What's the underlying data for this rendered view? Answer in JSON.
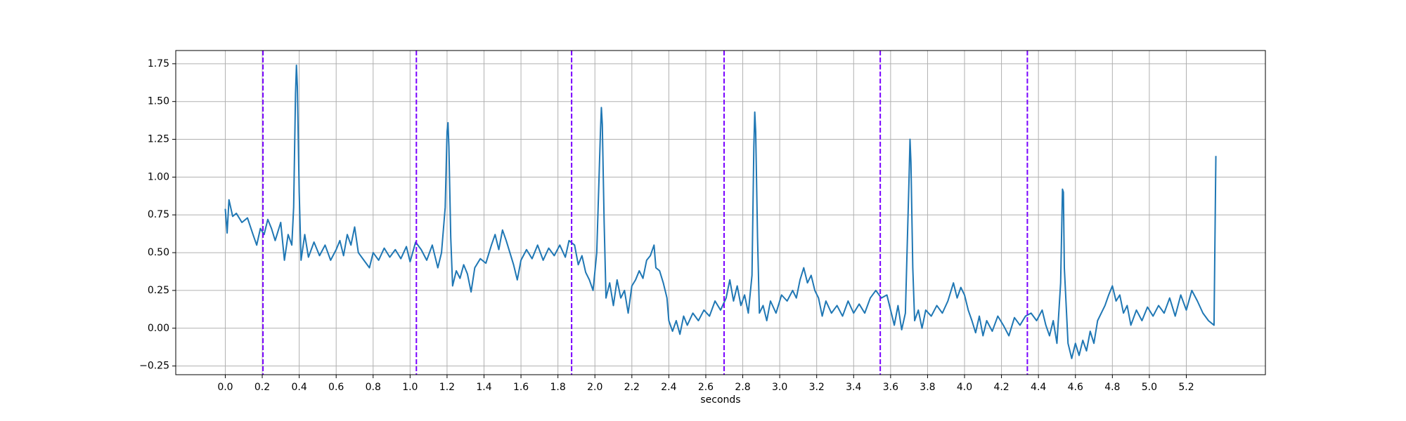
{
  "chart_data": {
    "type": "line",
    "xlabel": "seconds",
    "color": "#1f77b4",
    "grid": true,
    "xlim": [
      -0.268,
      5.628
    ],
    "ylim": [
      -0.3075,
      1.8375
    ],
    "xticks": [
      {
        "value": 0,
        "label": "0.0"
      },
      0.2,
      0.4,
      0.6,
      0.8,
      {
        "value": 1,
        "label": "1.0"
      },
      1.2,
      1.4,
      1.6,
      1.8,
      {
        "value": 2,
        "label": "2.0"
      },
      2.2,
      2.4,
      2.6,
      2.8,
      {
        "value": 3,
        "label": "3.0"
      },
      3.2,
      3.4,
      3.6,
      3.8,
      {
        "value": 4,
        "label": "4.0"
      },
      4.2,
      4.4,
      4.6,
      4.8,
      {
        "value": 5,
        "label": "5.0"
      },
      5.2
    ],
    "yticks": [
      {
        "value": -0.25,
        "label": "−0.25"
      },
      {
        "value": 0,
        "label": "0.00"
      },
      0.25,
      {
        "value": 0.5,
        "label": "0.50"
      },
      0.75,
      {
        "value": 1,
        "label": "1.00"
      },
      1.25,
      {
        "value": 1.5,
        "label": "1.50"
      },
      1.75
    ],
    "vlines": [
      0.204,
      1.034,
      1.874,
      2.699,
      3.544,
      4.34
    ],
    "vline_color": "#7a00ff",
    "vline_style": "dashed",
    "x": [
      0.0,
      0.01,
      0.02,
      0.04,
      0.06,
      0.09,
      0.12,
      0.15,
      0.17,
      0.19,
      0.21,
      0.23,
      0.25,
      0.27,
      0.3,
      0.32,
      0.34,
      0.36,
      0.37,
      0.38,
      0.385,
      0.39,
      0.4,
      0.41,
      0.43,
      0.45,
      0.48,
      0.51,
      0.54,
      0.57,
      0.6,
      0.62,
      0.64,
      0.66,
      0.68,
      0.7,
      0.72,
      0.75,
      0.78,
      0.8,
      0.83,
      0.86,
      0.89,
      0.92,
      0.95,
      0.98,
      1.0,
      1.03,
      1.06,
      1.09,
      1.12,
      1.15,
      1.17,
      1.19,
      1.2,
      1.205,
      1.21,
      1.22,
      1.23,
      1.25,
      1.27,
      1.29,
      1.31,
      1.33,
      1.35,
      1.38,
      1.41,
      1.44,
      1.46,
      1.48,
      1.5,
      1.52,
      1.54,
      1.56,
      1.58,
      1.6,
      1.63,
      1.66,
      1.69,
      1.72,
      1.75,
      1.78,
      1.81,
      1.84,
      1.86,
      1.89,
      1.91,
      1.93,
      1.95,
      1.97,
      1.99,
      2.01,
      2.03,
      2.035,
      2.04,
      2.05,
      2.06,
      2.08,
      2.1,
      2.12,
      2.14,
      2.16,
      2.18,
      2.2,
      2.22,
      2.24,
      2.26,
      2.28,
      2.3,
      2.32,
      2.33,
      2.35,
      2.37,
      2.39,
      2.4,
      2.42,
      2.44,
      2.46,
      2.48,
      2.5,
      2.53,
      2.56,
      2.59,
      2.62,
      2.65,
      2.68,
      2.71,
      2.73,
      2.75,
      2.77,
      2.79,
      2.81,
      2.83,
      2.85,
      2.86,
      2.865,
      2.87,
      2.88,
      2.89,
      2.91,
      2.93,
      2.95,
      2.98,
      3.01,
      3.04,
      3.07,
      3.09,
      3.11,
      3.13,
      3.15,
      3.17,
      3.19,
      3.21,
      3.23,
      3.25,
      3.28,
      3.31,
      3.34,
      3.37,
      3.4,
      3.43,
      3.46,
      3.49,
      3.52,
      3.55,
      3.58,
      3.6,
      3.62,
      3.64,
      3.66,
      3.68,
      3.7,
      3.705,
      3.71,
      3.72,
      3.73,
      3.75,
      3.77,
      3.79,
      3.82,
      3.85,
      3.88,
      3.91,
      3.94,
      3.96,
      3.98,
      4.0,
      4.02,
      4.04,
      4.06,
      4.08,
      4.1,
      4.12,
      4.15,
      4.18,
      4.21,
      4.24,
      4.27,
      4.3,
      4.33,
      4.36,
      4.39,
      4.42,
      4.44,
      4.46,
      4.48,
      4.5,
      4.52,
      4.53,
      4.535,
      4.54,
      4.56,
      4.58,
      4.6,
      4.62,
      4.64,
      4.66,
      4.68,
      4.7,
      4.72,
      4.74,
      4.76,
      4.78,
      4.8,
      4.82,
      4.84,
      4.86,
      4.88,
      4.9,
      4.93,
      4.96,
      4.99,
      5.02,
      5.05,
      5.08,
      5.11,
      5.14,
      5.17,
      5.2,
      5.23,
      5.26,
      5.29,
      5.32,
      5.34,
      5.35,
      5.36
    ],
    "values": [
      0.79,
      0.63,
      0.85,
      0.74,
      0.76,
      0.7,
      0.73,
      0.62,
      0.55,
      0.66,
      0.62,
      0.72,
      0.66,
      0.58,
      0.7,
      0.45,
      0.62,
      0.55,
      0.8,
      1.55,
      1.74,
      1.6,
      0.9,
      0.45,
      0.62,
      0.47,
      0.57,
      0.48,
      0.55,
      0.45,
      0.52,
      0.58,
      0.48,
      0.62,
      0.55,
      0.67,
      0.5,
      0.45,
      0.4,
      0.5,
      0.45,
      0.53,
      0.47,
      0.52,
      0.46,
      0.54,
      0.44,
      0.57,
      0.52,
      0.45,
      0.55,
      0.4,
      0.5,
      0.8,
      1.3,
      1.36,
      1.2,
      0.6,
      0.28,
      0.38,
      0.33,
      0.42,
      0.36,
      0.24,
      0.4,
      0.46,
      0.43,
      0.55,
      0.62,
      0.52,
      0.65,
      0.58,
      0.5,
      0.42,
      0.32,
      0.45,
      0.52,
      0.46,
      0.55,
      0.45,
      0.53,
      0.48,
      0.55,
      0.47,
      0.58,
      0.55,
      0.42,
      0.48,
      0.37,
      0.32,
      0.25,
      0.5,
      1.3,
      1.46,
      1.35,
      0.7,
      0.2,
      0.3,
      0.15,
      0.32,
      0.2,
      0.25,
      0.1,
      0.28,
      0.32,
      0.38,
      0.33,
      0.45,
      0.48,
      0.55,
      0.4,
      0.38,
      0.3,
      0.2,
      0.05,
      -0.02,
      0.05,
      -0.04,
      0.08,
      0.02,
      0.1,
      0.05,
      0.12,
      0.08,
      0.18,
      0.12,
      0.2,
      0.32,
      0.18,
      0.28,
      0.15,
      0.22,
      0.1,
      0.35,
      1.2,
      1.43,
      1.3,
      0.6,
      0.1,
      0.15,
      0.05,
      0.18,
      0.1,
      0.22,
      0.18,
      0.25,
      0.2,
      0.32,
      0.4,
      0.3,
      0.35,
      0.25,
      0.2,
      0.08,
      0.18,
      0.1,
      0.15,
      0.08,
      0.18,
      0.1,
      0.16,
      0.1,
      0.2,
      0.25,
      0.2,
      0.22,
      0.12,
      0.02,
      0.15,
      -0.01,
      0.1,
      1.0,
      1.25,
      1.1,
      0.4,
      0.05,
      0.12,
      0.0,
      0.12,
      0.08,
      0.15,
      0.1,
      0.18,
      0.3,
      0.2,
      0.27,
      0.22,
      0.12,
      0.05,
      -0.03,
      0.08,
      -0.05,
      0.05,
      -0.02,
      0.08,
      0.02,
      -0.05,
      0.07,
      0.02,
      0.08,
      0.1,
      0.05,
      0.12,
      0.02,
      -0.05,
      0.05,
      -0.1,
      0.3,
      0.92,
      0.9,
      0.4,
      -0.1,
      -0.2,
      -0.1,
      -0.18,
      -0.08,
      -0.15,
      -0.02,
      -0.1,
      0.05,
      0.1,
      0.15,
      0.22,
      0.28,
      0.18,
      0.22,
      0.1,
      0.15,
      0.02,
      0.12,
      0.05,
      0.14,
      0.08,
      0.15,
      0.1,
      0.2,
      0.08,
      0.22,
      0.12,
      0.25,
      0.18,
      0.1,
      0.05,
      0.03,
      0.02,
      1.14
    ]
  }
}
